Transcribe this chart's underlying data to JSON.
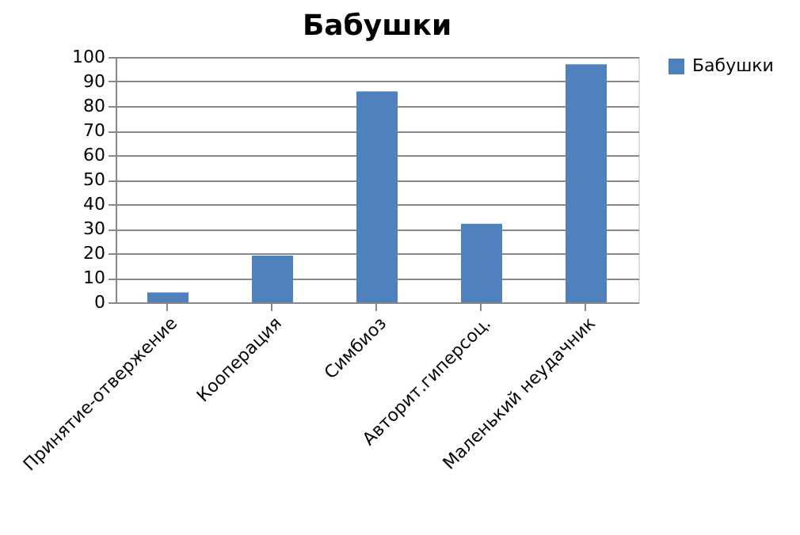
{
  "chart_data": {
    "type": "bar",
    "title": "Бабушки",
    "categories": [
      "Принятие-отвержение",
      "Кооперация",
      "Симбиоз",
      "Авторит.гиперсоц.",
      "Маленький неудачник"
    ],
    "series": [
      {
        "name": "Бабушки",
        "color": "#4f81bd",
        "values": [
          4,
          19,
          86,
          32,
          97
        ]
      }
    ],
    "ylim": [
      0,
      100
    ],
    "yticks": [
      0,
      10,
      20,
      30,
      40,
      50,
      60,
      70,
      80,
      90,
      100
    ],
    "grid": true,
    "legend": "right"
  }
}
